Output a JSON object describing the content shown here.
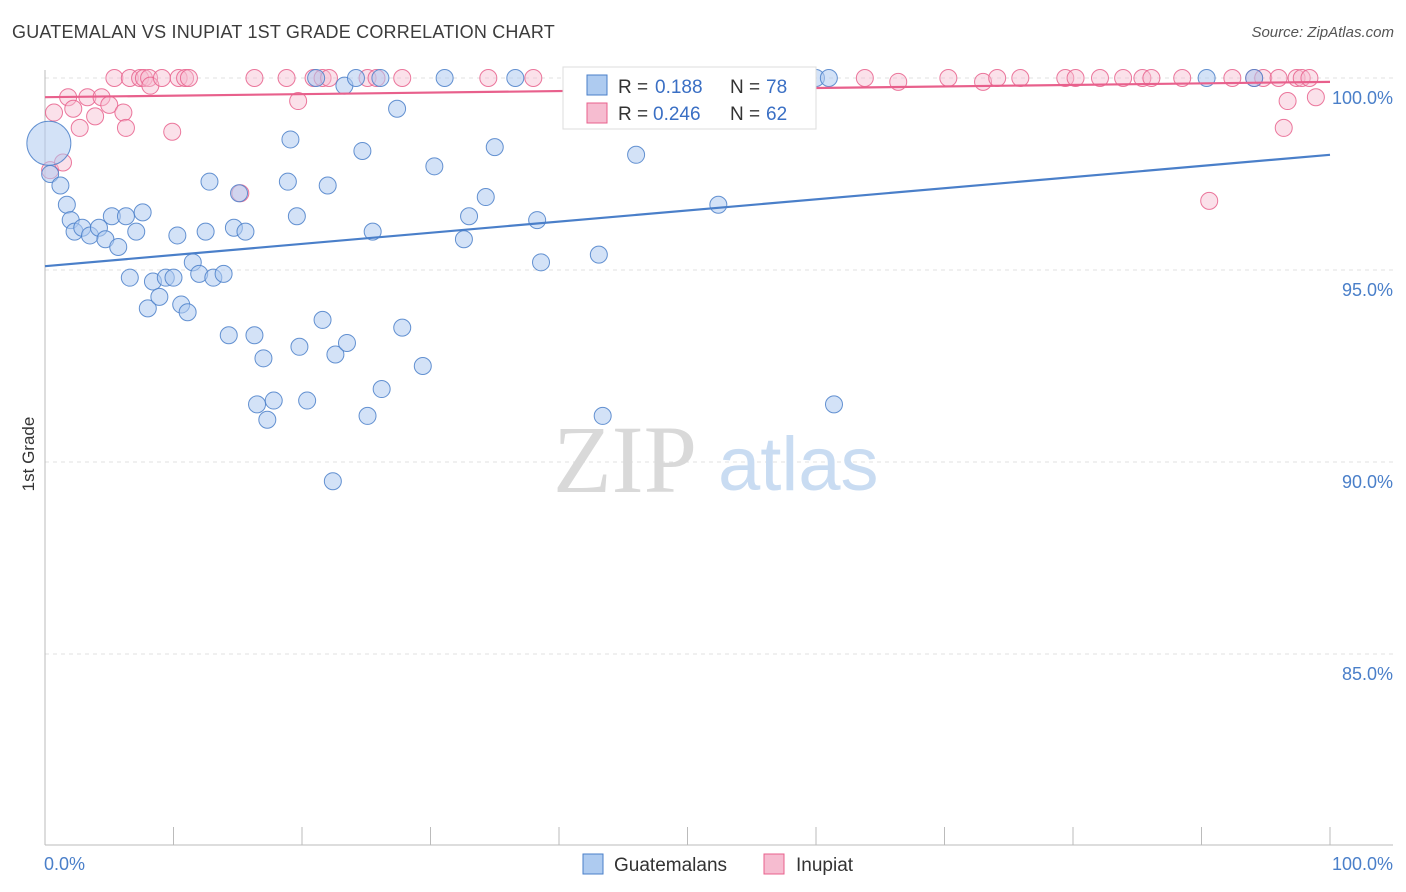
{
  "header": {
    "title": "GUATEMALAN VS INUPIAT 1ST GRADE CORRELATION CHART",
    "source": "Source: ZipAtlas.com"
  },
  "colors": {
    "blue": "#4a7fc9",
    "blue_fill": "#aecbf0",
    "pink": "#e8608c",
    "pink_fill": "#f6bcd0",
    "grid": "#e0e0e0",
    "axis": "#bbbbbb"
  },
  "watermark": {
    "zip": "ZIP",
    "atlas": "atlas"
  },
  "chart_data": {
    "type": "scatter",
    "title": "GUATEMALAN VS INUPIAT 1ST GRADE CORRELATION CHART",
    "xlabel": "",
    "ylabel": "1st Grade",
    "xlim": [
      0,
      100
    ],
    "ylim": [
      80.5,
      100.6
    ],
    "x_tick_labels": [
      "0.0%",
      "100.0%"
    ],
    "y_ticks": [
      {
        "value": 100,
        "label": "100.0%"
      },
      {
        "value": 95,
        "label": "95.0%"
      },
      {
        "value": 90,
        "label": "90.0%"
      },
      {
        "value": 85,
        "label": "85.0%"
      }
    ],
    "grid": true,
    "legend": {
      "placement": "top-center",
      "entries": [
        {
          "r_label": "R =",
          "r_value": "0.188",
          "n_label": "N =",
          "n_value": "78"
        },
        {
          "r_label": "R =",
          "r_value": "0.246",
          "n_label": "N =",
          "n_value": "62"
        }
      ]
    },
    "series": [
      {
        "name": "Guatemalans",
        "color": "#4a7fc9",
        "trend": {
          "x": [
            0,
            100
          ],
          "y": [
            95.1,
            98.0
          ]
        },
        "points": [
          {
            "x": 0.3,
            "y": 98.3,
            "big": true
          },
          {
            "x": 0.4,
            "y": 97.5
          },
          {
            "x": 1.2,
            "y": 97.2
          },
          {
            "x": 1.7,
            "y": 96.7
          },
          {
            "x": 2.0,
            "y": 96.3
          },
          {
            "x": 2.3,
            "y": 96.0
          },
          {
            "x": 2.9,
            "y": 96.1
          },
          {
            "x": 3.5,
            "y": 95.9
          },
          {
            "x": 4.2,
            "y": 96.1
          },
          {
            "x": 4.7,
            "y": 95.8
          },
          {
            "x": 5.2,
            "y": 96.4
          },
          {
            "x": 5.7,
            "y": 95.6
          },
          {
            "x": 6.3,
            "y": 96.4
          },
          {
            "x": 6.6,
            "y": 94.8
          },
          {
            "x": 7.1,
            "y": 96.0
          },
          {
            "x": 7.6,
            "y": 96.5
          },
          {
            "x": 8.0,
            "y": 94.0
          },
          {
            "x": 8.4,
            "y": 94.7
          },
          {
            "x": 8.9,
            "y": 94.3
          },
          {
            "x": 9.4,
            "y": 94.8
          },
          {
            "x": 10.0,
            "y": 94.8
          },
          {
            "x": 10.3,
            "y": 95.9
          },
          {
            "x": 10.6,
            "y": 94.1
          },
          {
            "x": 11.1,
            "y": 93.9
          },
          {
            "x": 11.5,
            "y": 95.2
          },
          {
            "x": 12.0,
            "y": 94.9
          },
          {
            "x": 12.5,
            "y": 96.0
          },
          {
            "x": 12.8,
            "y": 97.3
          },
          {
            "x": 13.1,
            "y": 94.8
          },
          {
            "x": 13.9,
            "y": 94.9
          },
          {
            "x": 14.3,
            "y": 93.3
          },
          {
            "x": 14.7,
            "y": 96.1
          },
          {
            "x": 15.1,
            "y": 97.0
          },
          {
            "x": 15.6,
            "y": 96.0
          },
          {
            "x": 16.3,
            "y": 93.3
          },
          {
            "x": 16.5,
            "y": 91.5
          },
          {
            "x": 17.0,
            "y": 92.7
          },
          {
            "x": 17.3,
            "y": 91.1
          },
          {
            "x": 17.8,
            "y": 91.6
          },
          {
            "x": 18.9,
            "y": 97.3
          },
          {
            "x": 19.1,
            "y": 98.4
          },
          {
            "x": 19.6,
            "y": 96.4
          },
          {
            "x": 19.8,
            "y": 93.0
          },
          {
            "x": 20.4,
            "y": 91.6
          },
          {
            "x": 21.1,
            "y": 100.0
          },
          {
            "x": 21.6,
            "y": 93.7
          },
          {
            "x": 22.0,
            "y": 97.2
          },
          {
            "x": 22.4,
            "y": 89.5
          },
          {
            "x": 22.6,
            "y": 92.8
          },
          {
            "x": 23.3,
            "y": 99.8
          },
          {
            "x": 23.5,
            "y": 93.1
          },
          {
            "x": 24.2,
            "y": 100.0
          },
          {
            "x": 24.7,
            "y": 98.1
          },
          {
            "x": 25.1,
            "y": 91.2
          },
          {
            "x": 25.5,
            "y": 96.0
          },
          {
            "x": 26.1,
            "y": 100.0
          },
          {
            "x": 26.2,
            "y": 91.9
          },
          {
            "x": 27.4,
            "y": 99.2
          },
          {
            "x": 27.8,
            "y": 93.5
          },
          {
            "x": 29.4,
            "y": 92.5
          },
          {
            "x": 30.3,
            "y": 97.7
          },
          {
            "x": 31.1,
            "y": 100.0
          },
          {
            "x": 32.6,
            "y": 95.8
          },
          {
            "x": 33.0,
            "y": 96.4
          },
          {
            "x": 34.3,
            "y": 96.9
          },
          {
            "x": 35.0,
            "y": 98.2
          },
          {
            "x": 36.6,
            "y": 100.0
          },
          {
            "x": 38.3,
            "y": 96.3
          },
          {
            "x": 38.6,
            "y": 95.2
          },
          {
            "x": 43.1,
            "y": 95.4
          },
          {
            "x": 43.4,
            "y": 91.2
          },
          {
            "x": 46.0,
            "y": 98.0
          },
          {
            "x": 52.4,
            "y": 96.7
          },
          {
            "x": 60.0,
            "y": 100.0
          },
          {
            "x": 61.0,
            "y": 100.0
          },
          {
            "x": 61.4,
            "y": 91.5
          },
          {
            "x": 90.4,
            "y": 100.0
          },
          {
            "x": 94.1,
            "y": 100.0
          }
        ]
      },
      {
        "name": "Inupiat",
        "color": "#e8608c",
        "trend": {
          "x": [
            0,
            100
          ],
          "y": [
            99.5,
            99.9
          ]
        },
        "points": [
          {
            "x": 0.4,
            "y": 97.6
          },
          {
            "x": 0.7,
            "y": 99.1
          },
          {
            "x": 1.4,
            "y": 97.8
          },
          {
            "x": 1.8,
            "y": 99.5
          },
          {
            "x": 2.2,
            "y": 99.2
          },
          {
            "x": 2.7,
            "y": 98.7
          },
          {
            "x": 3.3,
            "y": 99.5
          },
          {
            "x": 3.9,
            "y": 99.0
          },
          {
            "x": 4.4,
            "y": 99.5
          },
          {
            "x": 5.0,
            "y": 99.3
          },
          {
            "x": 5.4,
            "y": 100.0
          },
          {
            "x": 6.1,
            "y": 99.1
          },
          {
            "x": 6.3,
            "y": 98.7
          },
          {
            "x": 6.6,
            "y": 100.0
          },
          {
            "x": 7.4,
            "y": 100.0
          },
          {
            "x": 7.7,
            "y": 100.0
          },
          {
            "x": 8.1,
            "y": 100.0
          },
          {
            "x": 8.2,
            "y": 99.8
          },
          {
            "x": 9.1,
            "y": 100.0
          },
          {
            "x": 9.9,
            "y": 98.6
          },
          {
            "x": 10.4,
            "y": 100.0
          },
          {
            "x": 10.9,
            "y": 100.0
          },
          {
            "x": 11.2,
            "y": 100.0
          },
          {
            "x": 15.2,
            "y": 97.0
          },
          {
            "x": 16.3,
            "y": 100.0
          },
          {
            "x": 18.8,
            "y": 100.0
          },
          {
            "x": 19.7,
            "y": 99.4
          },
          {
            "x": 20.9,
            "y": 100.0
          },
          {
            "x": 21.6,
            "y": 100.0
          },
          {
            "x": 22.1,
            "y": 100.0
          },
          {
            "x": 25.1,
            "y": 100.0
          },
          {
            "x": 25.8,
            "y": 100.0
          },
          {
            "x": 27.8,
            "y": 100.0
          },
          {
            "x": 34.5,
            "y": 100.0
          },
          {
            "x": 38.0,
            "y": 100.0
          },
          {
            "x": 46.3,
            "y": 100.0
          },
          {
            "x": 52.1,
            "y": 100.0
          },
          {
            "x": 55.9,
            "y": 100.0
          },
          {
            "x": 63.8,
            "y": 100.0
          },
          {
            "x": 66.4,
            "y": 99.9
          },
          {
            "x": 70.3,
            "y": 100.0
          },
          {
            "x": 73.0,
            "y": 99.9
          },
          {
            "x": 74.1,
            "y": 100.0
          },
          {
            "x": 75.9,
            "y": 100.0
          },
          {
            "x": 79.4,
            "y": 100.0
          },
          {
            "x": 80.2,
            "y": 100.0
          },
          {
            "x": 82.1,
            "y": 100.0
          },
          {
            "x": 83.9,
            "y": 100.0
          },
          {
            "x": 85.4,
            "y": 100.0
          },
          {
            "x": 86.1,
            "y": 100.0
          },
          {
            "x": 88.5,
            "y": 100.0
          },
          {
            "x": 90.6,
            "y": 96.8
          },
          {
            "x": 92.4,
            "y": 100.0
          },
          {
            "x": 94.1,
            "y": 100.0
          },
          {
            "x": 94.8,
            "y": 100.0
          },
          {
            "x": 96.0,
            "y": 100.0
          },
          {
            "x": 96.4,
            "y": 98.7
          },
          {
            "x": 96.7,
            "y": 99.4
          },
          {
            "x": 97.4,
            "y": 100.0
          },
          {
            "x": 97.8,
            "y": 100.0
          },
          {
            "x": 98.4,
            "y": 100.0
          },
          {
            "x": 98.9,
            "y": 99.5
          }
        ]
      }
    ]
  }
}
